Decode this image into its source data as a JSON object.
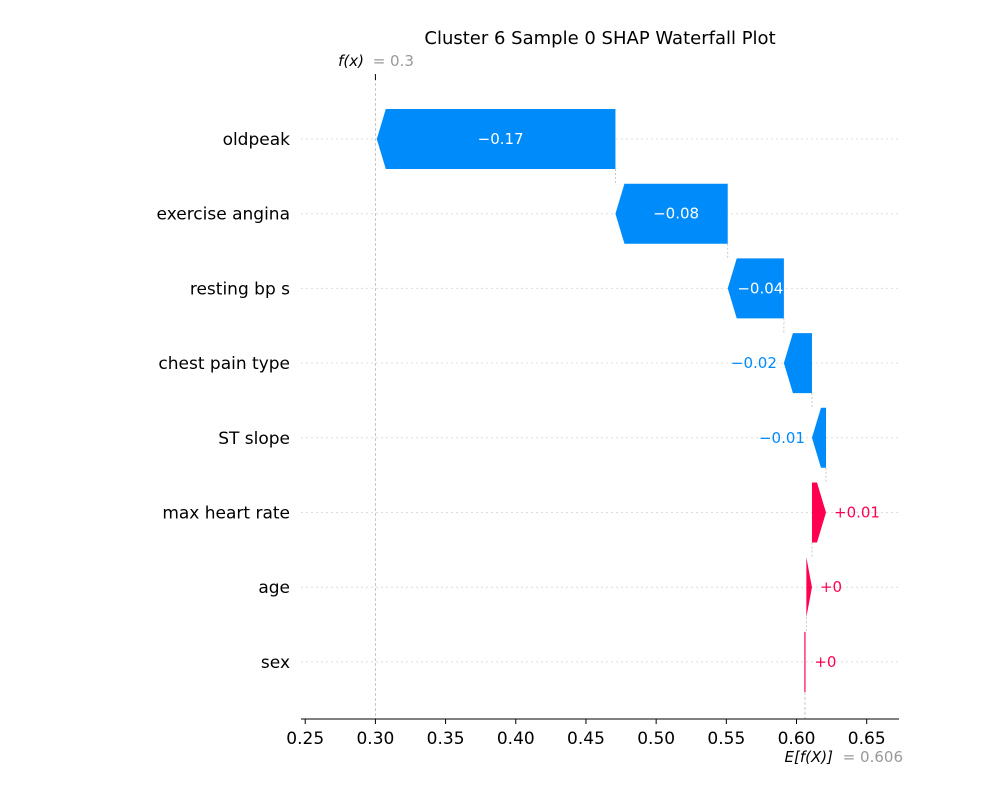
{
  "chart_data": {
    "type": "waterfall",
    "title": "Cluster 6 Sample 0 SHAP Waterfall Plot",
    "fx": {
      "label_func": "f(x)",
      "label_eq": "= 0.3",
      "value": 0.3
    },
    "base": {
      "label_func": "E[f(X)]",
      "label_eq": "= 0.606",
      "value": 0.606
    },
    "features": [
      {
        "name": "oldpeak",
        "shap": -0.17,
        "label": "−0.17"
      },
      {
        "name": "exercise angina",
        "shap": -0.08,
        "label": "−0.08"
      },
      {
        "name": "resting bp s",
        "shap": -0.04,
        "label": "−0.04"
      },
      {
        "name": "chest pain type",
        "shap": -0.02,
        "label": "−0.02"
      },
      {
        "name": "ST slope",
        "shap": -0.01,
        "label": "−0.01"
      },
      {
        "name": "max heart rate",
        "shap": 0.01,
        "label": "+0.01"
      },
      {
        "name": "age",
        "shap": 0.004,
        "label": "+0"
      },
      {
        "name": "sex",
        "shap": 0.001,
        "label": "+0"
      }
    ],
    "xlim": [
      0.247,
      0.673
    ],
    "xticks": [
      0.25,
      0.3,
      0.35,
      0.4,
      0.45,
      0.5,
      0.55,
      0.6,
      0.65
    ],
    "xtick_labels": [
      "0.25",
      "0.30",
      "0.35",
      "0.40",
      "0.45",
      "0.50",
      "0.55",
      "0.60",
      "0.65"
    ],
    "colors": {
      "negative": "#008bfb",
      "positive": "#ff0051",
      "grid": "#dddddd",
      "axis": "#000000"
    }
  }
}
